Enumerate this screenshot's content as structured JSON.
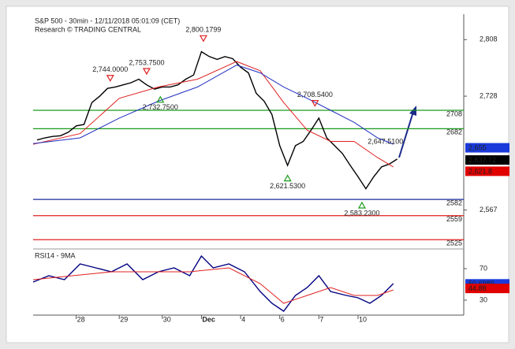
{
  "chart_data": [
    {
      "type": "line",
      "title": "S&P 500 - 30min - 12/11/2018 05:01:09 (CET)",
      "subtitle": "Research © TRADING CENTRAL",
      "xlim": [
        0,
        110
      ],
      "ylim": [
        2513,
        2844
      ],
      "yticks": [
        {
          "value": 2808,
          "label": "2,808"
        },
        {
          "value": 2728,
          "label": "2,728"
        },
        {
          "value": 2567,
          "label": "2,567"
        }
      ],
      "series": [
        {
          "color": "#000000",
          "x": [
            1,
            3,
            5,
            7,
            9,
            11,
            13,
            15,
            17,
            19,
            21,
            23,
            25,
            27,
            29,
            31,
            33,
            35,
            37,
            39,
            41,
            43,
            45,
            47,
            49,
            51,
            53,
            55,
            57,
            59,
            61,
            63,
            65,
            67,
            69,
            71,
            73,
            75,
            77,
            79,
            81,
            83,
            85,
            87,
            89,
            91,
            93
          ],
          "values": [
            2666,
            2669,
            2671,
            2672,
            2677,
            2686,
            2688,
            2719,
            2728,
            2739,
            2741,
            2744,
            2747,
            2752,
            2744,
            2738,
            2741,
            2741,
            2744,
            2752,
            2758,
            2791,
            2784,
            2780,
            2784,
            2781,
            2769,
            2761,
            2732,
            2721,
            2702,
            2658,
            2630,
            2658,
            2664,
            2680,
            2697,
            2669,
            2658,
            2647,
            2630,
            2614,
            2597,
            2614,
            2628,
            2632,
            2639
          ]
        },
        {
          "color": "#e02020",
          "x": [
            0,
            12,
            22,
            32,
            42,
            52,
            58,
            64,
            70,
            76,
            82,
            88,
            92
          ],
          "values": [
            2660,
            2675,
            2725,
            2741,
            2752,
            2777,
            2764,
            2719,
            2680,
            2664,
            2664,
            2641,
            2628
          ]
        },
        {
          "color": "#2030c0",
          "x": [
            0,
            12,
            22,
            32,
            42,
            52,
            58,
            64,
            70,
            76,
            82,
            88,
            92
          ],
          "values": [
            2661,
            2669,
            2697,
            2721,
            2741,
            2772,
            2761,
            2741,
            2725,
            2708,
            2691,
            2669,
            2660
          ]
        }
      ],
      "levels": [
        {
          "value": 2708,
          "color": "#1a9a1a"
        },
        {
          "value": 2682,
          "color": "#1a9a1a"
        },
        {
          "value": 2582,
          "color": "#1a2a9a"
        },
        {
          "value": 2559,
          "color": "#e02020"
        },
        {
          "value": 2525,
          "color": "#e02020"
        }
      ],
      "tags": [
        {
          "value": 2655,
          "label": "2,655",
          "color": "#1a3adb"
        },
        {
          "value": 2637.72,
          "label": "2,637.72",
          "color": "#000000"
        },
        {
          "value": 2621.8,
          "label": "2,621.8",
          "color": "#e00000"
        }
      ],
      "annotations": [
        {
          "x": 43.5,
          "value": 2800.1799,
          "label": "2,800.1799",
          "marker": "down"
        },
        {
          "x": 29,
          "value": 2753.75,
          "label": "2,753.7500",
          "marker": "down"
        },
        {
          "x": 19.7,
          "value": 2744,
          "label": "2,744.0000",
          "marker": "down"
        },
        {
          "x": 32.5,
          "value": 2732.75,
          "label": "2,732.7500",
          "marker": "up"
        },
        {
          "x": 72,
          "value": 2708.54,
          "label": "2,708.5400",
          "marker": "down"
        },
        {
          "x": 90,
          "value": 2647.51,
          "label": "2,647.5100",
          "marker": "none"
        },
        {
          "x": 65,
          "value": 2621.53,
          "label": "2,621.5300",
          "marker": "up"
        },
        {
          "x": 84,
          "value": 2583.23,
          "label": "2,583.2300",
          "marker": "up"
        }
      ]
    },
    {
      "type": "line",
      "title": "RSI14 - 9MA",
      "xlim": [
        0,
        110
      ],
      "xticks": [
        {
          "value": 11,
          "label": "28"
        },
        {
          "value": 22,
          "label": "29"
        },
        {
          "value": 33,
          "label": "30"
        },
        {
          "value": 43,
          "label": "Dec"
        },
        {
          "value": 53,
          "label": "4"
        },
        {
          "value": 63,
          "label": "6"
        },
        {
          "value": 73,
          "label": "7"
        },
        {
          "value": 83,
          "label": "10"
        }
      ],
      "ylim": [
        11,
        93
      ],
      "yticks": [
        70,
        30
      ],
      "series": [
        {
          "color": "#000080",
          "x": [
            0,
            4,
            8,
            12,
            16,
            20,
            24,
            28,
            32,
            36,
            40,
            43,
            46,
            50,
            54,
            58,
            61,
            64,
            67,
            70,
            73,
            76,
            80,
            83,
            86,
            89,
            92
          ],
          "values": [
            53,
            61,
            56,
            76,
            71,
            66,
            76,
            56,
            66,
            71,
            61,
            86,
            71,
            76,
            66,
            41,
            26,
            16,
            36,
            46,
            61,
            41,
            36,
            33,
            26,
            36,
            51
          ]
        },
        {
          "color": "#e02020",
          "x": [
            0,
            10,
            20,
            30,
            40,
            50,
            58,
            64,
            70,
            76,
            82,
            88,
            92
          ],
          "values": [
            56,
            61,
            66,
            66,
            66,
            71,
            51,
            26,
            36,
            46,
            36,
            36,
            43
          ]
        }
      ],
      "tags": [
        {
          "value": 50.6989,
          "label": "50.6989",
          "color": "#1a3adb"
        },
        {
          "value": 44.88,
          "label": "44.88",
          "color": "#e00000"
        }
      ]
    }
  ]
}
